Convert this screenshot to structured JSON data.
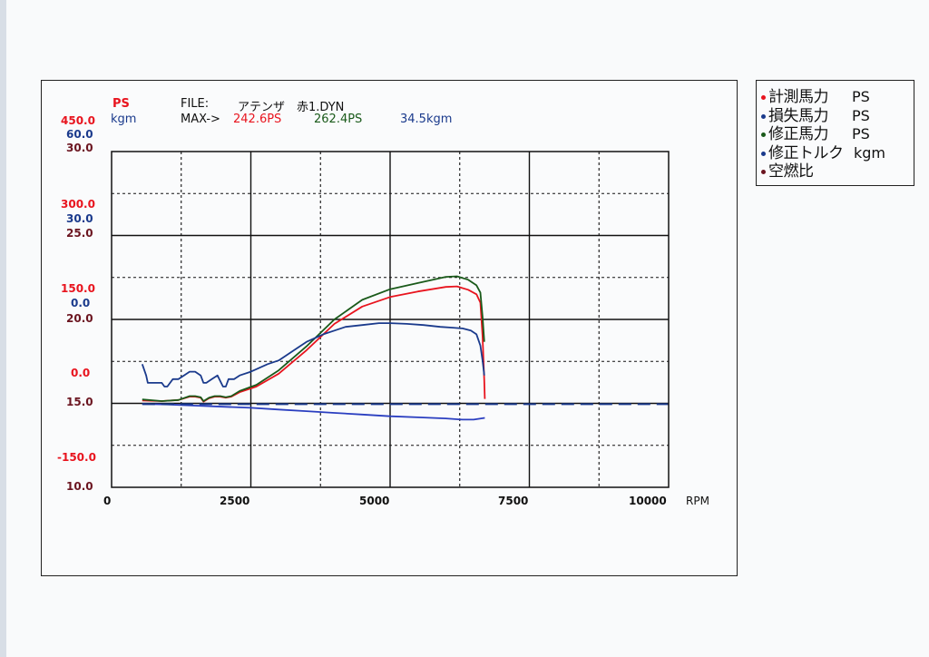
{
  "chart_data": {
    "type": "line",
    "xlabel": "RPM",
    "xlim": [
      0,
      10000
    ],
    "x_ticks": [
      "0",
      "2500",
      "5000",
      "7500",
      "10000"
    ],
    "header": {
      "ps_label": "PS",
      "kgm_label": "kgm",
      "file_label": "FILE:",
      "file_name": "アテンザ　赤1.DYN",
      "max_label": "MAX->",
      "max_values": [
        "242.6PS",
        "262.4PS",
        "34.5kgm"
      ]
    },
    "axes": {
      "ps": {
        "ticks": [
          "450.0",
          "300.0",
          "150.0",
          "0.0",
          "-150.0"
        ],
        "ylim": [
          -150,
          450
        ],
        "color": "#e8141e"
      },
      "kgm": {
        "ticks": [
          "60.0",
          "30.0",
          "0.0"
        ],
        "ylim": [
          -30,
          60
        ],
        "color": "#1a3a8c"
      },
      "afr": {
        "ticks": [
          "30.0",
          "25.0",
          "20.0",
          "15.0",
          "10.0"
        ],
        "ylim": [
          10,
          30
        ],
        "color": "#6b1520"
      }
    },
    "legend": [
      {
        "name": "計測馬力",
        "unit": "PS",
        "color": "#e8141e"
      },
      {
        "name": "損失馬力",
        "unit": "PS",
        "color": "#1a3a8c"
      },
      {
        "name": "修正馬力",
        "unit": "PS",
        "color": "#1a5a1a"
      },
      {
        "name": "修正トルク",
        "unit": "kgm",
        "color": "#1a3a8c"
      },
      {
        "name": "空燃比",
        "unit": "",
        "color": "#6b1520"
      }
    ],
    "series": [
      {
        "name": "計測馬力",
        "color": "#e8141e",
        "x": [
          550,
          900,
          1200,
          1400,
          1500,
          1600,
          1650,
          1750,
          1850,
          1950,
          2050,
          2150,
          2300,
          2600,
          3000,
          3500,
          4000,
          4500,
          5000,
          5500,
          6000,
          6200,
          6400,
          6550,
          6620,
          6660,
          6690,
          6700
        ],
        "y": [
          5,
          4,
          6,
          12,
          12,
          10,
          3,
          9,
          12,
          12,
          10,
          12,
          20,
          30,
          53,
          95,
          142,
          173,
          190,
          200,
          208,
          209,
          203,
          195,
          180,
          120,
          40,
          8
        ]
      },
      {
        "name": "修正馬力",
        "color": "#1a5a1a",
        "x": [
          550,
          900,
          1200,
          1400,
          1500,
          1600,
          1650,
          1750,
          1850,
          1950,
          2050,
          2150,
          2300,
          2600,
          3000,
          3500,
          4000,
          4500,
          5000,
          5500,
          6000,
          6200,
          6400,
          6550,
          6620,
          6660,
          6690
        ],
        "y": [
          7,
          4,
          6,
          13,
          13,
          11,
          4,
          10,
          13,
          13,
          11,
          13,
          22,
          33,
          59,
          102,
          150,
          185,
          204,
          215,
          226,
          227,
          221,
          211,
          198,
          155,
          110
        ]
      },
      {
        "name": "損失馬力",
        "color": "#2a3ec0",
        "x": [
          550,
          1000,
          1500,
          2000,
          2500,
          3000,
          3500,
          4000,
          4500,
          5000,
          5500,
          6000,
          6300,
          6500,
          6700
        ],
        "y": [
          -1,
          -2,
          -4,
          -6,
          -8,
          -11,
          -14,
          -17,
          -20,
          -23,
          -25,
          -27,
          -29,
          -29,
          -26
        ]
      },
      {
        "name": "修正トルク",
        "color": "#1a3a8c",
        "x": [
          550,
          620,
          650,
          700,
          800,
          900,
          950,
          1000,
          1100,
          1200,
          1300,
          1400,
          1500,
          1600,
          1650,
          1700,
          1800,
          1900,
          2000,
          2050,
          2100,
          2200,
          2300,
          2500,
          2800,
          3000,
          3200,
          3500,
          3800,
          4000,
          4200,
          4500,
          4800,
          5000,
          5300,
          5600,
          5900,
          6100,
          6300,
          6450,
          6550,
          6620,
          6660,
          6690
        ],
        "y": [
          3,
          0,
          -2,
          -2,
          -2,
          -2,
          -3,
          -3,
          -1,
          -1,
          0,
          1,
          1,
          0,
          -2,
          -2,
          -1,
          0,
          -3,
          -3,
          -1,
          -1,
          0,
          1,
          3,
          4,
          6,
          9,
          11,
          12,
          13,
          13.5,
          14,
          14,
          13.8,
          13.5,
          13,
          12.8,
          12.6,
          12,
          11,
          8,
          4,
          0
        ]
      },
      {
        "name": "基準線",
        "color": "#1a3a8c",
        "dashed": true,
        "x": [
          550,
          10000
        ],
        "y": [
          14.95,
          14.95
        ],
        "axis": "afr"
      }
    ]
  }
}
